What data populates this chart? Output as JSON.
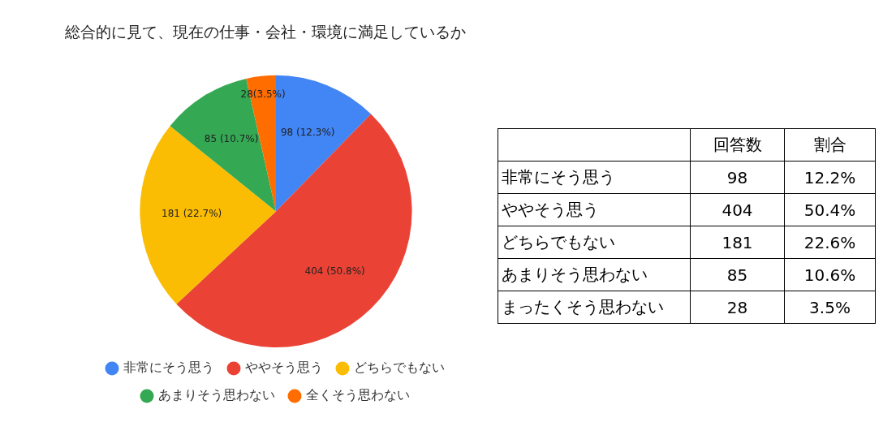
{
  "chart_data": [
    {
      "type": "pie",
      "title": "総合的に見て、現在の仕事・会社・環境に満足しているか",
      "categories": [
        "非常にそう思う",
        "ややそう思う",
        "どちらでもない",
        "あまりそう思わない",
        "全くそう思わない"
      ],
      "values": [
        98,
        404,
        181,
        85,
        28
      ],
      "colors": [
        "#4285f4",
        "#ea4335",
        "#fbbc04",
        "#34a853",
        "#ff6d01"
      ],
      "value_labels": [
        "98 (12.3%)",
        "404 (50.8%)",
        "181 (22.7%)",
        "85 (10.7%)",
        "28(3.5%)"
      ],
      "legend": "bottom"
    },
    {
      "type": "other",
      "data_labels": true,
      "categories": [
        "非常にそう思う",
        "ややそう思う",
        "どちらでもない",
        "あまりそう思わない",
        "まったくそう思わない"
      ],
      "series": [
        {
          "name": "回答数",
          "values": [
            98,
            404,
            181,
            85,
            28
          ]
        },
        {
          "name": "割合",
          "values": [
            12.2,
            50.4,
            22.6,
            10.6,
            3.5
          ],
          "value_labels": [
            "12.2%",
            "50.4%",
            "22.6%",
            "10.6%",
            "3.5%"
          ]
        }
      ]
    }
  ]
}
